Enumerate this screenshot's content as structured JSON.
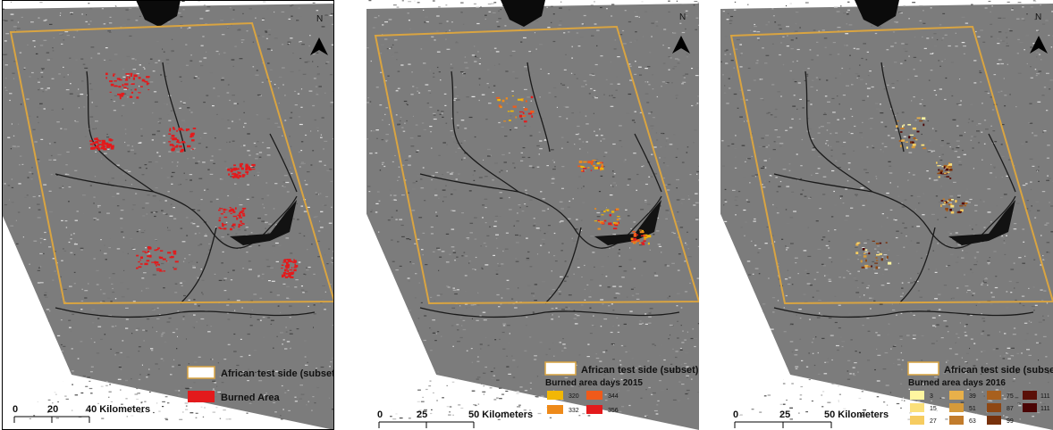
{
  "maps": [
    {
      "id": "burned",
      "north": "N",
      "legend": {
        "aoi_label": "African test side (subset)",
        "title": "",
        "items": [
          {
            "value": "Burned Area",
            "color": "#e31a1c"
          }
        ]
      },
      "scale": {
        "ticks": [
          "0",
          "20",
          "40 Kilometers"
        ]
      }
    },
    {
      "id": "days2015",
      "north": "N",
      "legend": {
        "aoi_label": "African test side (subset)",
        "title": "Burned area days 2015",
        "items": [
          {
            "value": "320",
            "color": "#f2b705"
          },
          {
            "value": "332",
            "color": "#ee8a1a"
          },
          {
            "value": "344",
            "color": "#f05a1a"
          },
          {
            "value": "356",
            "color": "#e31a1c"
          }
        ]
      },
      "scale": {
        "ticks": [
          "0",
          "25",
          "50 Kilometers"
        ]
      }
    },
    {
      "id": "days2016",
      "north": "N",
      "legend": {
        "aoi_label": "African test side (subset)",
        "title": "Burned area days 2016",
        "items": [
          {
            "value": "3",
            "color": "#fff6a0"
          },
          {
            "value": "15",
            "color": "#fbe07a"
          },
          {
            "value": "27",
            "color": "#f6cc60"
          },
          {
            "value": "39",
            "color": "#e8b04a"
          },
          {
            "value": "51",
            "color": "#d69a3a"
          },
          {
            "value": "63",
            "color": "#c27c2c"
          },
          {
            "value": "75",
            "color": "#a8601e"
          },
          {
            "value": "87",
            "color": "#8e4714"
          },
          {
            "value": "99",
            "color": "#77310c"
          },
          {
            "value": "111",
            "color": "#5a1008"
          },
          {
            "value": "111",
            "color": "#4a0404"
          }
        ]
      },
      "scale": {
        "ticks": [
          "0",
          "25",
          "50 Kilometers"
        ]
      }
    }
  ]
}
